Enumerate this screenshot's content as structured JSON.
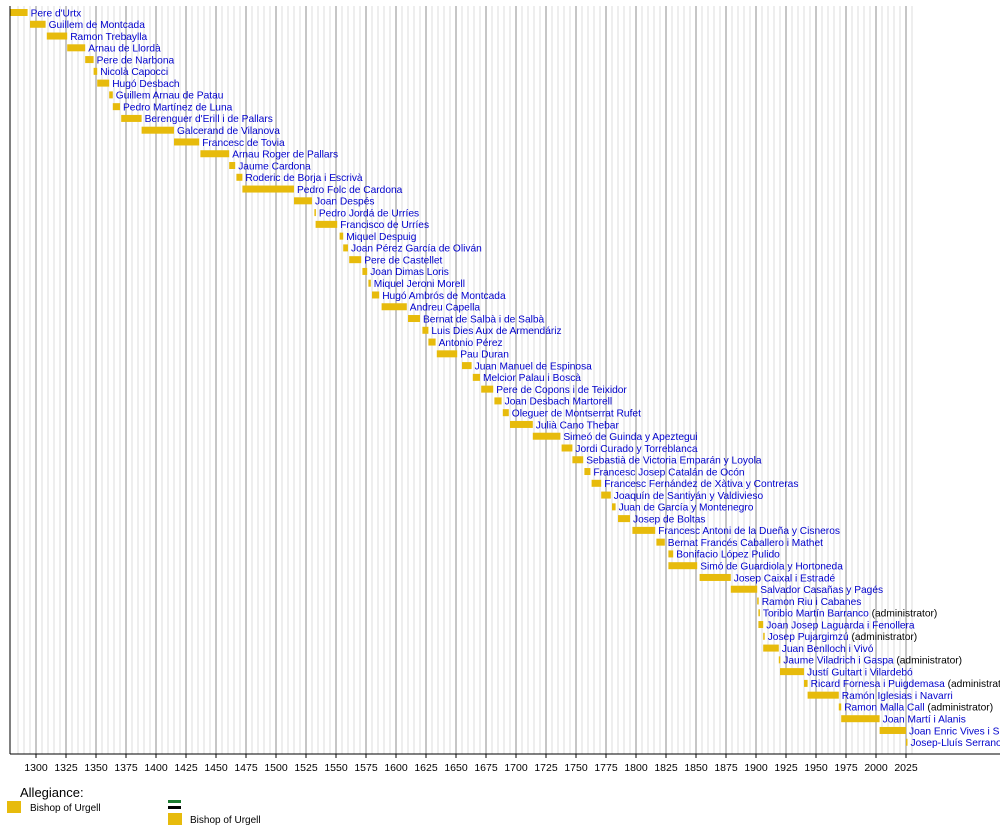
{
  "chart_data": {
    "type": "timeline",
    "bar_color": "#e7bb0c",
    "label_color": "#0000cc",
    "note_color": "#000000",
    "x_range": [
      1280,
      2030
    ],
    "x_ticks": [
      "1300",
      "1325",
      "1350",
      "1375",
      "1400",
      "1425",
      "1450",
      "1475",
      "1500",
      "1525",
      "1550",
      "1575",
      "1600",
      "1625",
      "1650",
      "1675",
      "1700",
      "1725",
      "1750",
      "1775",
      "1800",
      "1825",
      "1850",
      "1875",
      "1900",
      "1925",
      "1950",
      "1975",
      "2000",
      "2025"
    ],
    "grid": "minor every 5 years, major every 25 years",
    "bishops": [
      {
        "name": "Pere d'Urtx",
        "start": 1269,
        "end": 1293
      },
      {
        "name": "Guillem de Montcada",
        "start": 1295,
        "end": 1308
      },
      {
        "name": "Ramon Trebaylla",
        "start": 1309,
        "end": 1326
      },
      {
        "name": "Arnau de Llordà",
        "start": 1326,
        "end": 1341
      },
      {
        "name": "Pere de Narbona",
        "start": 1341,
        "end": 1348
      },
      {
        "name": "Nicolà Capocci",
        "start": 1348,
        "end": 1351
      },
      {
        "name": "Hugó Desbach",
        "start": 1351,
        "end": 1361
      },
      {
        "name": "Guillem Arnau de Patau",
        "start": 1361,
        "end": 1364
      },
      {
        "name": "Pedro Martínez de Luna",
        "start": 1364,
        "end": 1370
      },
      {
        "name": "Berenguer d'Erill i de Pallars",
        "start": 1371,
        "end": 1388
      },
      {
        "name": "Galcerand de Vilanova",
        "start": 1388,
        "end": 1415
      },
      {
        "name": "Francesc de Tovia",
        "start": 1415,
        "end": 1436
      },
      {
        "name": "Arnau Roger de Pallars",
        "start": 1437,
        "end": 1461
      },
      {
        "name": "Jaume Cardona",
        "start": 1461,
        "end": 1466
      },
      {
        "name": "Roderic de Borja i Escrivà",
        "start": 1467,
        "end": 1472
      },
      {
        "name": "Pedro Folc de Cardona",
        "start": 1472,
        "end": 1515
      },
      {
        "name": "Joan Despés",
        "start": 1515,
        "end": 1530
      },
      {
        "name": "Pedro Jordá de Urríes",
        "start": 1532,
        "end": 1533
      },
      {
        "name": "Francisco de Urríes",
        "start": 1533,
        "end": 1551
      },
      {
        "name": "Miquel Despuig",
        "start": 1553,
        "end": 1556
      },
      {
        "name": "Joan Pérez García de Oliván",
        "start": 1556,
        "end": 1560
      },
      {
        "name": "Pere de Castellet",
        "start": 1561,
        "end": 1571
      },
      {
        "name": "Joan Dimas Loris",
        "start": 1572,
        "end": 1576
      },
      {
        "name": "Miquel Jeroni Morell",
        "start": 1577,
        "end": 1579
      },
      {
        "name": "Hugó Ambrós de Montcada",
        "start": 1580,
        "end": 1586
      },
      {
        "name": "Andreu Capella",
        "start": 1588,
        "end": 1609
      },
      {
        "name": "Bernat de Salbà i de Salbà",
        "start": 1610,
        "end": 1620
      },
      {
        "name": "Luis Dies Aux de Armendáriz",
        "start": 1622,
        "end": 1627
      },
      {
        "name": "Antonio Pérez",
        "start": 1627,
        "end": 1633
      },
      {
        "name": "Pau Duran",
        "start": 1634,
        "end": 1651
      },
      {
        "name": "Juan Manuel de Espinosa",
        "start": 1655,
        "end": 1663
      },
      {
        "name": "Melcior Palau i Boscà",
        "start": 1664,
        "end": 1670
      },
      {
        "name": "Pere de Copons i de Teixidor",
        "start": 1671,
        "end": 1681
      },
      {
        "name": "Joan Desbach Martorell",
        "start": 1682,
        "end": 1688
      },
      {
        "name": "Oleguer de Montserrat Rufet",
        "start": 1689,
        "end": 1694
      },
      {
        "name": "Julià Cano Thebar",
        "start": 1695,
        "end": 1714
      },
      {
        "name": "Simeó de Guinda y Apeztegui",
        "start": 1714,
        "end": 1737
      },
      {
        "name": "Jordi Curado y Torreblanca",
        "start": 1738,
        "end": 1747
      },
      {
        "name": "Sebastià de Victoria Emparán y Loyola",
        "start": 1747,
        "end": 1756
      },
      {
        "name": "Francesc Josep Catalán de Ocón",
        "start": 1757,
        "end": 1762
      },
      {
        "name": "Francesc Fernández de Xàtiva y Contreras",
        "start": 1763,
        "end": 1771
      },
      {
        "name": "Joaquín de Santiyán y Valdivieso",
        "start": 1771,
        "end": 1779
      },
      {
        "name": "Juan de García y Montenegro",
        "start": 1780,
        "end": 1783
      },
      {
        "name": "Josep de Boltas",
        "start": 1785,
        "end": 1795
      },
      {
        "name": "Francesc Antoni de la Dueña y Cisneros",
        "start": 1797,
        "end": 1816
      },
      {
        "name": "Bernat Francés Caballero i Mathet",
        "start": 1817,
        "end": 1824
      },
      {
        "name": "Bonifacio López Pulido",
        "start": 1827,
        "end": 1831
      },
      {
        "name": "Simó de Guardiola y Hortoneda",
        "start": 1827,
        "end": 1851
      },
      {
        "name": "Josep Caixal i Estradé",
        "start": 1853,
        "end": 1879
      },
      {
        "name": "Salvador Casañas y Pagés",
        "start": 1879,
        "end": 1901
      },
      {
        "name": "Ramon Riu i Cabanes",
        "start": 1901,
        "end": 1901
      },
      {
        "name": "Toribio Martín Barranco",
        "note": "(administrator)",
        "start": 1902,
        "end": 1902
      },
      {
        "name": "Joan Josep Laguarda i Fenollera",
        "start": 1902,
        "end": 1906
      },
      {
        "name": "Josep Pujargimzú",
        "note": "(administrator)",
        "start": 1906,
        "end": 1906
      },
      {
        "name": "Juan Benlloch i Vivó",
        "start": 1906,
        "end": 1919
      },
      {
        "name": "Jaume Viladrich i Gaspa",
        "note": "(administrator)",
        "start": 1919,
        "end": 1920
      },
      {
        "name": "Justí Guitart i Vilardebó",
        "start": 1920,
        "end": 1940
      },
      {
        "name": "Ricard Fornesa i Puigdemasa",
        "note": "(administrator)",
        "start": 1940,
        "end": 1943
      },
      {
        "name": "Ramón Iglesias i Navarri",
        "start": 1943,
        "end": 1969
      },
      {
        "name": "Ramon Malla Call",
        "note": "(administrator)",
        "start": 1969,
        "end": 1971
      },
      {
        "name": "Joan Martí i Alanis",
        "start": 1971,
        "end": 2003
      },
      {
        "name": "Joan Enric Vives i Sicília",
        "start": 2003,
        "end": 2025
      },
      {
        "name": "Josep-Lluís Serrano Pentinat",
        "start": 2025,
        "end": 2026
      }
    ],
    "legend": {
      "title": "Allegiance:",
      "items": [
        {
          "label": "Bishop of Urgell",
          "color": "#e7bb0c"
        },
        {
          "label": "Bishop of Urgell",
          "color": "#e7bb0c",
          "flag_colors": [
            "#1a7a2e",
            "#ffffff",
            "#000000"
          ]
        }
      ]
    }
  }
}
